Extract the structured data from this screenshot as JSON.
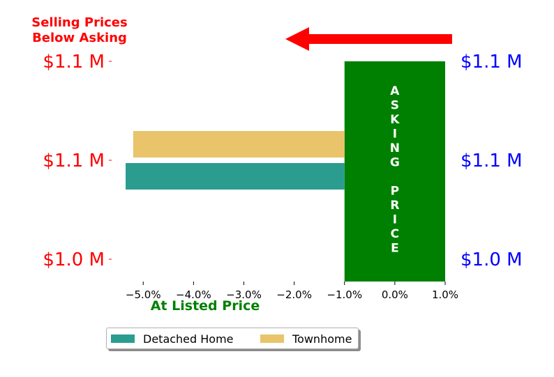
{
  "chart_data": {
    "type": "bar",
    "orientation": "horizontal",
    "categories": [
      "$1.0 M",
      "$1.1 M",
      "$1.1 M"
    ],
    "right_labels": [
      "$1.0 M",
      "$1.1 M",
      "$1.1 M"
    ],
    "series": [
      {
        "name": "Detached Home",
        "color": "#2a9d8f",
        "values": [
          null,
          -5.35,
          null
        ]
      },
      {
        "name": "Townhome",
        "color": "#e9c46a",
        "values": [
          null,
          -5.2,
          null
        ]
      }
    ],
    "xlim": [
      -5.6,
      1.0
    ],
    "xticks": [
      -5.0,
      -4.0,
      -3.0,
      -2.0,
      -1.0,
      0.0,
      1.0
    ],
    "xtick_labels": [
      "−5.0%",
      "−4.0%",
      "−3.0%",
      "−2.0%",
      "−1.0%",
      "0.0%",
      "1.0%"
    ],
    "asking_price_band": {
      "x_start": -1.0,
      "x_end": 1.0,
      "color": "#008000"
    },
    "asking_price_letters": [
      "A",
      "S",
      "K",
      "I",
      "N",
      "G",
      "",
      "P",
      "R",
      "I",
      "C",
      "E"
    ],
    "annotations": {
      "top_left": [
        "Selling Prices",
        "Below Asking"
      ],
      "bottom": "At Listed Price"
    },
    "colors": {
      "left_labels": "#ff0000",
      "right_labels": "#0000ff",
      "arrow": "#ff0000",
      "bottom_annotation": "#008000"
    },
    "grid": false,
    "legend_placement": "bottom-left"
  }
}
